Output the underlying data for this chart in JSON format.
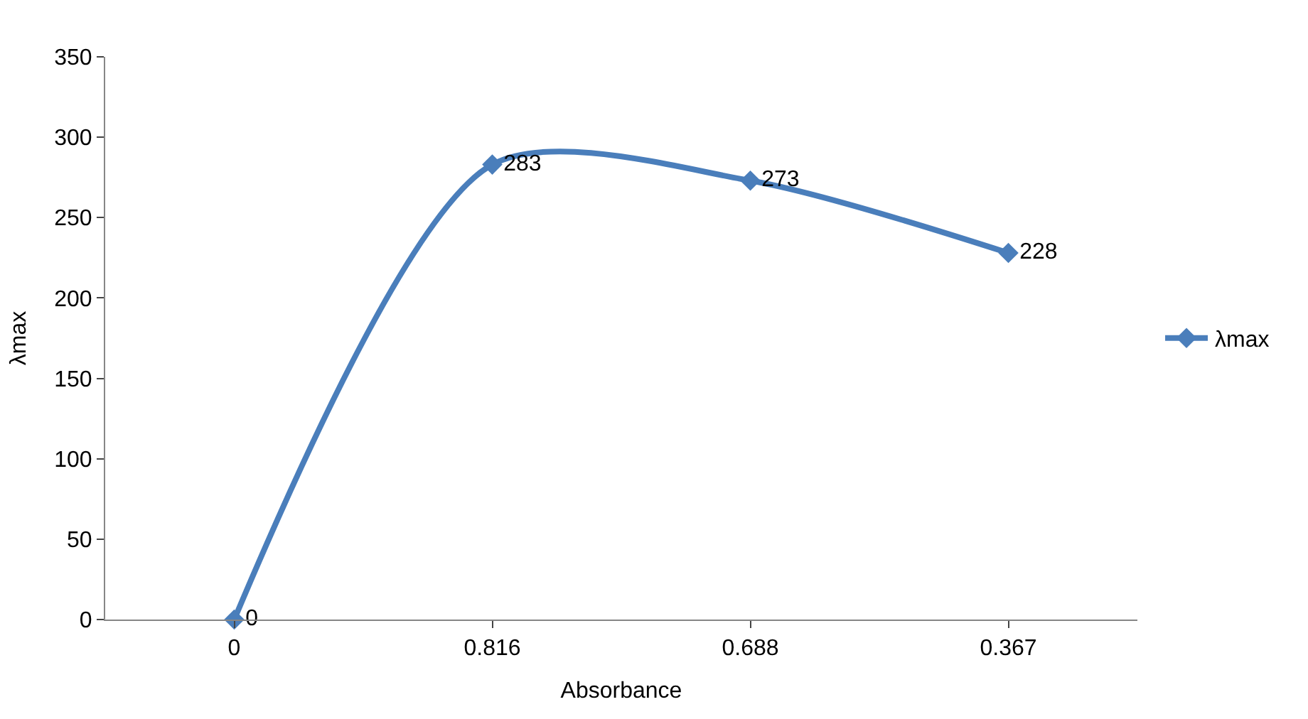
{
  "chart_data": {
    "type": "line",
    "xlabel": "Absorbance",
    "ylabel": "λmax",
    "categories": [
      "0",
      "0.816",
      "0.688",
      "0.367"
    ],
    "series": [
      {
        "name": "λmax",
        "color": "#4a7ebb",
        "values": [
          0,
          283,
          273,
          228
        ]
      }
    ],
    "ylim": [
      0,
      350
    ],
    "yticks": [
      0,
      50,
      100,
      150,
      200,
      250,
      300,
      350
    ],
    "grid": false,
    "legend": "right",
    "marker": "diamond",
    "line_style": "solid",
    "data_labels": true
  }
}
